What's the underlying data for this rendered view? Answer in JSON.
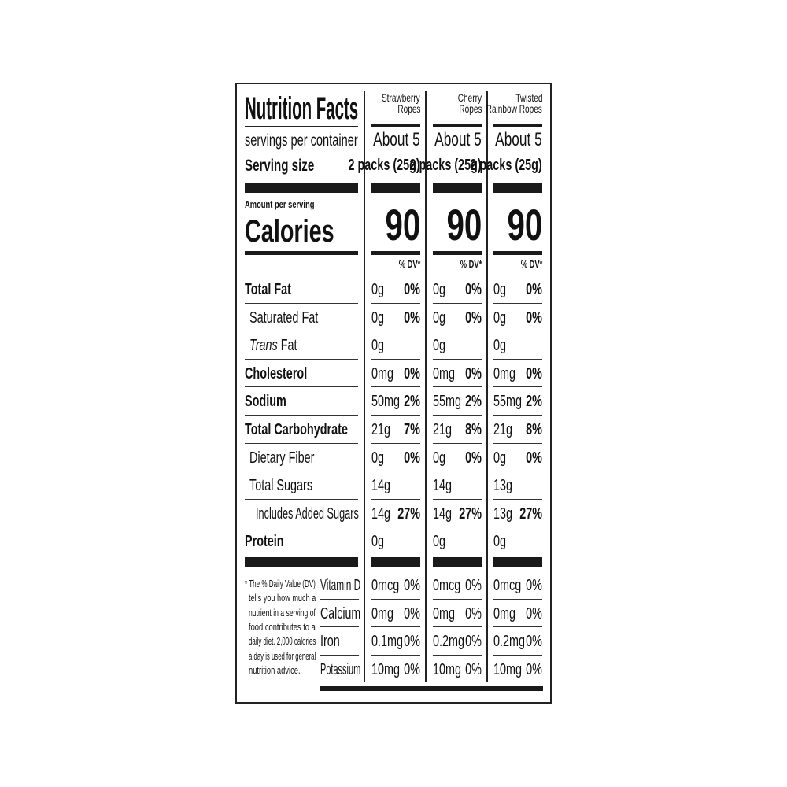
{
  "header": {
    "title": "Nutrition Facts",
    "servings_label": "servings per container",
    "serving_size_label": "Serving size",
    "amount_per_serving": "Amount per serving",
    "calories_label": "Calories",
    "dv_label": "% DV*"
  },
  "products": [
    {
      "name_line1": "Strawberry",
      "name_line2": "Ropes",
      "servings": "About 5",
      "serving_size": "2 packs (25g)",
      "calories": "90"
    },
    {
      "name_line1": "Cherry",
      "name_line2": "Ropes",
      "servings": "About 5",
      "serving_size": "2 packs (25g)",
      "calories": "90"
    },
    {
      "name_line1": "Twisted",
      "name_line2": "Rainbow Ropes",
      "servings": "About 5",
      "serving_size": "2 packs (25g)",
      "calories": "90"
    }
  ],
  "nutrients": [
    {
      "label": "Total Fat",
      "bold": true,
      "indent": 0,
      "values": [
        [
          "0g",
          "0%"
        ],
        [
          "0g",
          "0%"
        ],
        [
          "0g",
          "0%"
        ]
      ]
    },
    {
      "label": "Saturated Fat",
      "bold": false,
      "indent": 1,
      "values": [
        [
          "0g",
          "0%"
        ],
        [
          "0g",
          "0%"
        ],
        [
          "0g",
          "0%"
        ]
      ]
    },
    {
      "label_italic": "Trans",
      "label": " Fat",
      "bold": false,
      "indent": 1,
      "values": [
        [
          "0g",
          ""
        ],
        [
          "0g",
          ""
        ],
        [
          "0g",
          ""
        ]
      ]
    },
    {
      "label": "Cholesterol",
      "bold": true,
      "indent": 0,
      "values": [
        [
          "0mg",
          "0%"
        ],
        [
          "0mg",
          "0%"
        ],
        [
          "0mg",
          "0%"
        ]
      ]
    },
    {
      "label": "Sodium",
      "bold": true,
      "indent": 0,
      "values": [
        [
          "50mg",
          "2%"
        ],
        [
          "55mg",
          "2%"
        ],
        [
          "55mg",
          "2%"
        ]
      ]
    },
    {
      "label": "Total Carbohydrate",
      "bold": true,
      "indent": 0,
      "values": [
        [
          "21g",
          "7%"
        ],
        [
          "21g",
          "8%"
        ],
        [
          "21g",
          "8%"
        ]
      ]
    },
    {
      "label": "Dietary Fiber",
      "bold": false,
      "indent": 1,
      "values": [
        [
          "0g",
          "0%"
        ],
        [
          "0g",
          "0%"
        ],
        [
          "0g",
          "0%"
        ]
      ]
    },
    {
      "label": "Total Sugars",
      "bold": false,
      "indent": 1,
      "values": [
        [
          "14g",
          ""
        ],
        [
          "14g",
          ""
        ],
        [
          "13g",
          ""
        ]
      ]
    },
    {
      "label": "Includes Added Sugars",
      "bold": false,
      "indent": 2,
      "values": [
        [
          "14g",
          "27%"
        ],
        [
          "14g",
          "27%"
        ],
        [
          "13g",
          "27%"
        ]
      ]
    },
    {
      "label": "Protein",
      "bold": true,
      "indent": 0,
      "values": [
        [
          "0g",
          ""
        ],
        [
          "0g",
          ""
        ],
        [
          "0g",
          ""
        ]
      ]
    }
  ],
  "minerals": [
    {
      "label": "Vitamin D",
      "values": [
        [
          "0mcg",
          "0%"
        ],
        [
          "0mcg",
          "0%"
        ],
        [
          "0mcg",
          "0%"
        ]
      ]
    },
    {
      "label": "Calcium",
      "values": [
        [
          "0mg",
          "0%"
        ],
        [
          "0mg",
          "0%"
        ],
        [
          "0mg",
          "0%"
        ]
      ]
    },
    {
      "label": "Iron",
      "values": [
        [
          "0.1mg",
          "0%"
        ],
        [
          "0.2mg",
          "0%"
        ],
        [
          "0.2mg",
          "0%"
        ]
      ]
    },
    {
      "label": "Potassium",
      "values": [
        [
          "10mg",
          "0%"
        ],
        [
          "10mg",
          "0%"
        ],
        [
          "10mg",
          "0%"
        ]
      ]
    }
  ],
  "footnote": [
    "* The % Daily Value (DV)",
    "tells you how much a",
    "nutrient in a serving of",
    "food contributes to a",
    "daily diet. 2,000 calories",
    "a day is used for general",
    "nutrition advice."
  ]
}
